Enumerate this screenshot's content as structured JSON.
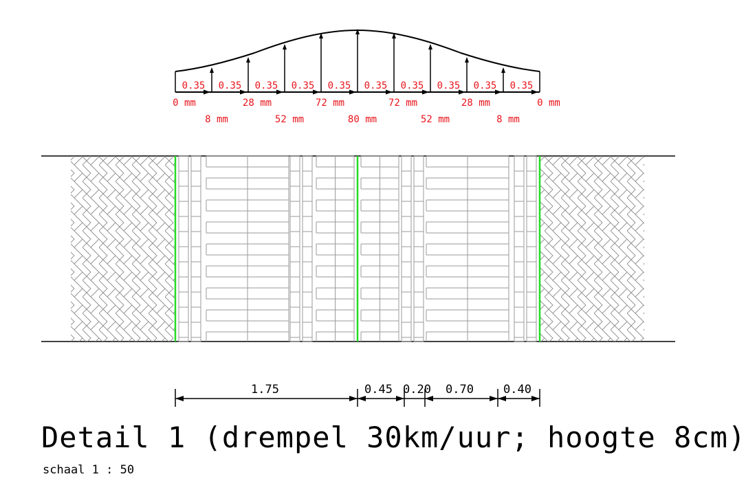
{
  "profile": {
    "segment_widths": [
      "0.35",
      "0.35",
      "0.35",
      "0.35",
      "0.35",
      "0.35",
      "0.35",
      "0.35",
      "0.35",
      "0.35"
    ],
    "heights_upper": [
      "0 mm",
      "28 mm",
      "72 mm",
      "72 mm",
      "28 mm",
      "0 mm"
    ],
    "heights_lower": [
      "8 mm",
      "52 mm",
      "80 mm",
      "52 mm",
      "8 mm"
    ]
  },
  "dimensions": {
    "d1": "1.75",
    "d2": "0.45",
    "d3": "0.20",
    "d4": "0.70",
    "d5": "0.40"
  },
  "colors": {
    "label_red": "#e8141b",
    "edge_green": "#22dd22",
    "line": "#000000",
    "pattern": "#9a9a9a"
  },
  "title": "Detail 1 (drempel 30km/uur; hoogte 8cm)",
  "scale": "schaal 1 : 50"
}
